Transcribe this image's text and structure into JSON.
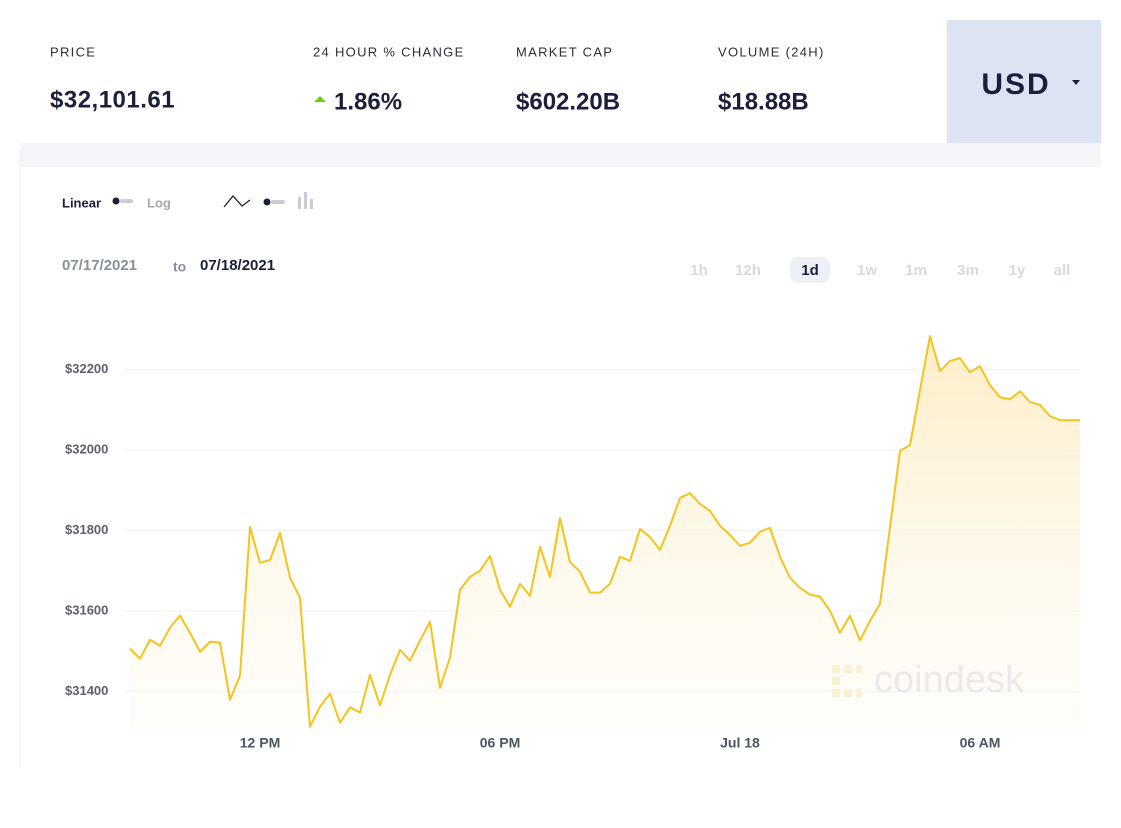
{
  "header": {
    "stats": [
      {
        "label": "PRICE",
        "value": "$32,101.61"
      },
      {
        "label": "24 HOUR % CHANGE",
        "value": "1.86%"
      },
      {
        "label": "MARKET CAP",
        "value": "$602.20B"
      },
      {
        "label": "VOLUME (24H)",
        "value": "$18.88B"
      }
    ],
    "currency": "USD"
  },
  "toolbar": {
    "scales": [
      {
        "label": "Linear",
        "active": true
      },
      {
        "label": "Log"
      }
    ],
    "date_from": "07/17/2021",
    "date_separator": "to",
    "date_to": "07/18/2021",
    "ranges": [
      {
        "label": "1h"
      },
      {
        "label": "12h"
      },
      {
        "label": "1d",
        "active": true
      },
      {
        "label": "1w"
      },
      {
        "label": "1m"
      },
      {
        "label": "3m"
      },
      {
        "label": "1y"
      },
      {
        "label": "all"
      }
    ]
  },
  "chart_data": {
    "type": "line",
    "color": "#f5c31e",
    "watermark": "coindesk",
    "categories": [
      null,
      null,
      null,
      null,
      null,
      null,
      null,
      null,
      null,
      null,
      null,
      null,
      null,
      "12 PM",
      null,
      null,
      null,
      null,
      null,
      null,
      null,
      null,
      null,
      null,
      null,
      null,
      null,
      null,
      null,
      null,
      null,
      null,
      null,
      null,
      null,
      null,
      null,
      "06 PM",
      null,
      null,
      null,
      null,
      null,
      null,
      null,
      null,
      null,
      null,
      null,
      null,
      null,
      null,
      null,
      null,
      null,
      null,
      null,
      null,
      null,
      null,
      null,
      "Jul 18",
      null,
      null,
      null,
      null,
      null,
      null,
      null,
      null,
      null,
      null,
      null,
      null,
      null,
      null,
      null,
      null,
      null,
      null,
      null,
      null,
      null,
      null,
      null,
      "06 AM",
      null,
      null,
      null,
      null,
      null,
      null,
      null,
      null,
      null,
      null
    ],
    "values": [
      31507,
      31482,
      31529,
      31514,
      31559,
      31589,
      31546,
      31499,
      31524,
      31522,
      31380,
      31440,
      31809,
      31720,
      31727,
      31794,
      31683,
      31633,
      31313,
      31363,
      31395,
      31323,
      31361,
      31348,
      31442,
      31366,
      31442,
      31504,
      31477,
      31527,
      31574,
      31410,
      31485,
      31653,
      31685,
      31700,
      31737,
      31653,
      31611,
      31668,
      31638,
      31760,
      31685,
      31831,
      31722,
      31698,
      31646,
      31646,
      31668,
      31735,
      31725,
      31804,
      31784,
      31752,
      31812,
      31881,
      31893,
      31866,
      31849,
      31812,
      31789,
      31762,
      31770,
      31797,
      31807,
      31735,
      31683,
      31658,
      31641,
      31636,
      31601,
      31546,
      31589,
      31527,
      31576,
      31618,
      31809,
      31998,
      32012,
      32149,
      32283,
      32196,
      32221,
      32228,
      32193,
      32208,
      32161,
      32131,
      32126,
      32146,
      32119,
      32112,
      32084,
      32074,
      32074,
      32074
    ],
    "ylim": [
      31300,
      32350
    ],
    "yticks": [
      {
        "value": 31400,
        "label": "$31400"
      },
      {
        "value": 31600,
        "label": "$31600"
      },
      {
        "value": 31800,
        "label": "$31800"
      },
      {
        "value": 32000,
        "label": "$32000"
      },
      {
        "value": 32200,
        "label": "$32200"
      }
    ],
    "grid": true
  }
}
